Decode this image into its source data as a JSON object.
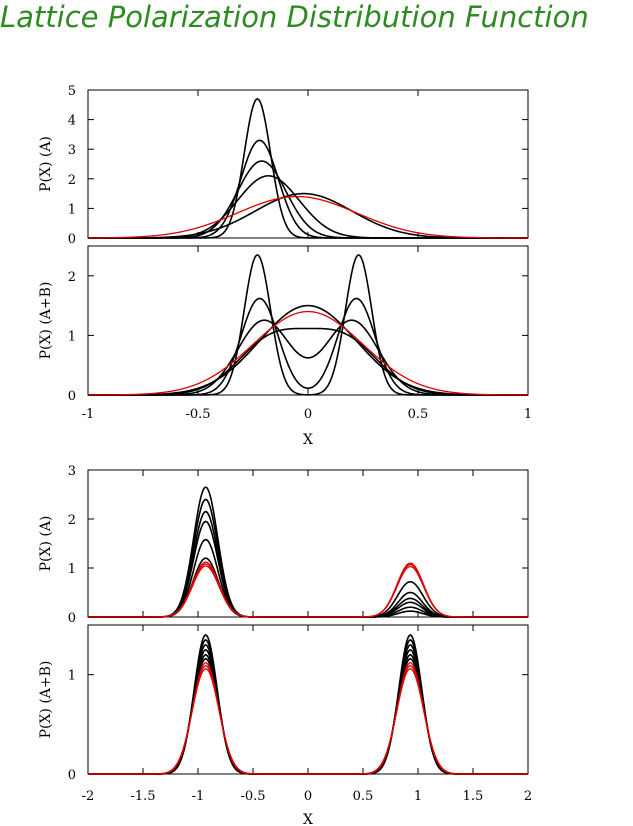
{
  "title": "Lattice Polarization Distribution Function",
  "colors": {
    "title": "#2e8b22",
    "main_curve": "#000000",
    "highlight_curve": "#e00000"
  },
  "chart_data": [
    {
      "type": "line",
      "figure": "top",
      "xlabel": "X",
      "x_range": [
        -1,
        1
      ],
      "x_ticks": [
        "-1",
        "-0.5",
        "0",
        "0.5",
        "1"
      ],
      "panels": [
        {
          "ylabel": "P(X) (A)",
          "ylim": [
            0,
            5
          ],
          "y_ticks": [
            "0",
            "1",
            "2",
            "3",
            "4",
            "5"
          ],
          "series": [
            {
              "color": "#000000",
              "gaussians": [
                {
                  "amp": 4.7,
                  "mu": -0.23,
                  "sigma": 0.06
                }
              ]
            },
            {
              "color": "#000000",
              "gaussians": [
                {
                  "amp": 3.3,
                  "mu": -0.22,
                  "sigma": 0.085
                }
              ]
            },
            {
              "color": "#000000",
              "gaussians": [
                {
                  "amp": 2.6,
                  "mu": -0.21,
                  "sigma": 0.11
                }
              ]
            },
            {
              "color": "#000000",
              "gaussians": [
                {
                  "amp": 2.1,
                  "mu": -0.18,
                  "sigma": 0.14
                }
              ]
            },
            {
              "color": "#000000",
              "gaussians": [
                {
                  "amp": 1.5,
                  "mu": -0.02,
                  "sigma": 0.22
                }
              ]
            },
            {
              "color": "#e00000",
              "gaussians": [
                {
                  "amp": 1.4,
                  "mu": -0.05,
                  "sigma": 0.27
                }
              ]
            }
          ]
        },
        {
          "ylabel": "P(X) (A+B)",
          "ylim": [
            0,
            2.5
          ],
          "y_ticks": [
            "0",
            "1",
            "2"
          ],
          "series": [
            {
              "color": "#000000",
              "gaussians": [
                {
                  "amp": 2.35,
                  "mu": -0.23,
                  "sigma": 0.06
                },
                {
                  "amp": 2.35,
                  "mu": 0.23,
                  "sigma": 0.06
                }
              ]
            },
            {
              "color": "#000000",
              "gaussians": [
                {
                  "amp": 1.62,
                  "mu": -0.22,
                  "sigma": 0.085
                },
                {
                  "amp": 1.62,
                  "mu": 0.22,
                  "sigma": 0.085
                }
              ]
            },
            {
              "color": "#000000",
              "gaussians": [
                {
                  "amp": 1.25,
                  "mu": -0.2,
                  "sigma": 0.12
                },
                {
                  "amp": 1.25,
                  "mu": 0.2,
                  "sigma": 0.12
                }
              ]
            },
            {
              "color": "#000000",
              "gaussians": [
                {
                  "amp": 0.92,
                  "mu": -0.16,
                  "sigma": 0.16
                },
                {
                  "amp": 0.92,
                  "mu": 0.16,
                  "sigma": 0.16
                }
              ]
            },
            {
              "color": "#000000",
              "gaussians": [
                {
                  "amp": 1.5,
                  "mu": 0,
                  "sigma": 0.22
                }
              ]
            },
            {
              "color": "#e00000",
              "gaussians": [
                {
                  "amp": 1.4,
                  "mu": 0,
                  "sigma": 0.25
                }
              ]
            }
          ]
        }
      ]
    },
    {
      "type": "line",
      "figure": "bottom",
      "xlabel": "X",
      "x_range": [
        -2,
        2
      ],
      "x_ticks": [
        "-2",
        "-1.5",
        "-1",
        "-0.5",
        "0",
        "0.5",
        "1",
        "1.5",
        "2"
      ],
      "panels": [
        {
          "ylabel": "P(X) (A)",
          "ylim": [
            0,
            3
          ],
          "y_ticks": [
            "0",
            "1",
            "2",
            "3"
          ],
          "series": [
            {
              "color": "#000000",
              "gaussians": [
                {
                  "amp": 2.65,
                  "mu": -0.93,
                  "sigma": 0.11
                },
                {
                  "amp": 0.12,
                  "mu": 0.93,
                  "sigma": 0.11
                }
              ]
            },
            {
              "color": "#000000",
              "gaussians": [
                {
                  "amp": 2.4,
                  "mu": -0.93,
                  "sigma": 0.11
                },
                {
                  "amp": 0.2,
                  "mu": 0.93,
                  "sigma": 0.11
                }
              ]
            },
            {
              "color": "#000000",
              "gaussians": [
                {
                  "amp": 2.15,
                  "mu": -0.93,
                  "sigma": 0.11
                },
                {
                  "amp": 0.3,
                  "mu": 0.93,
                  "sigma": 0.11
                }
              ]
            },
            {
              "color": "#000000",
              "gaussians": [
                {
                  "amp": 1.95,
                  "mu": -0.93,
                  "sigma": 0.11
                },
                {
                  "amp": 0.38,
                  "mu": 0.93,
                  "sigma": 0.11
                }
              ]
            },
            {
              "color": "#000000",
              "gaussians": [
                {
                  "amp": 1.58,
                  "mu": -0.93,
                  "sigma": 0.11
                },
                {
                  "amp": 0.5,
                  "mu": 0.93,
                  "sigma": 0.11
                }
              ]
            },
            {
              "color": "#000000",
              "gaussians": [
                {
                  "amp": 1.2,
                  "mu": -0.93,
                  "sigma": 0.115
                },
                {
                  "amp": 0.72,
                  "mu": 0.93,
                  "sigma": 0.115
                }
              ]
            },
            {
              "color": "#e00000",
              "gaussians": [
                {
                  "amp": 1.12,
                  "mu": -0.93,
                  "sigma": 0.12
                },
                {
                  "amp": 1.1,
                  "mu": 0.93,
                  "sigma": 0.12
                }
              ]
            },
            {
              "color": "#e00000",
              "gaussians": [
                {
                  "amp": 1.08,
                  "mu": -0.93,
                  "sigma": 0.12
                },
                {
                  "amp": 1.07,
                  "mu": 0.93,
                  "sigma": 0.12
                }
              ]
            },
            {
              "color": "#e00000",
              "gaussians": [
                {
                  "amp": 1.04,
                  "mu": -0.93,
                  "sigma": 0.12
                },
                {
                  "amp": 1.03,
                  "mu": 0.93,
                  "sigma": 0.12
                }
              ]
            }
          ]
        },
        {
          "ylabel": "P(X) (A+B)",
          "ylim": [
            0,
            1.5
          ],
          "y_ticks": [
            "0",
            "1"
          ],
          "series": [
            {
              "color": "#000000",
              "gaussians": [
                {
                  "amp": 1.4,
                  "mu": -0.93,
                  "sigma": 0.105
                },
                {
                  "amp": 1.4,
                  "mu": 0.93,
                  "sigma": 0.105
                }
              ]
            },
            {
              "color": "#000000",
              "gaussians": [
                {
                  "amp": 1.35,
                  "mu": -0.93,
                  "sigma": 0.107
                },
                {
                  "amp": 1.35,
                  "mu": 0.93,
                  "sigma": 0.107
                }
              ]
            },
            {
              "color": "#000000",
              "gaussians": [
                {
                  "amp": 1.3,
                  "mu": -0.93,
                  "sigma": 0.109
                },
                {
                  "amp": 1.3,
                  "mu": 0.93,
                  "sigma": 0.109
                }
              ]
            },
            {
              "color": "#000000",
              "gaussians": [
                {
                  "amp": 1.25,
                  "mu": -0.93,
                  "sigma": 0.111
                },
                {
                  "amp": 1.25,
                  "mu": 0.93,
                  "sigma": 0.111
                }
              ]
            },
            {
              "color": "#000000",
              "gaussians": [
                {
                  "amp": 1.2,
                  "mu": -0.93,
                  "sigma": 0.113
                },
                {
                  "amp": 1.2,
                  "mu": 0.93,
                  "sigma": 0.113
                }
              ]
            },
            {
              "color": "#000000",
              "gaussians": [
                {
                  "amp": 1.16,
                  "mu": -0.93,
                  "sigma": 0.115
                },
                {
                  "amp": 1.16,
                  "mu": 0.93,
                  "sigma": 0.115
                }
              ]
            },
            {
              "color": "#e00000",
              "gaussians": [
                {
                  "amp": 1.12,
                  "mu": -0.93,
                  "sigma": 0.117
                },
                {
                  "amp": 1.12,
                  "mu": 0.93,
                  "sigma": 0.117
                }
              ]
            },
            {
              "color": "#e00000",
              "gaussians": [
                {
                  "amp": 1.09,
                  "mu": -0.93,
                  "sigma": 0.119
                },
                {
                  "amp": 1.09,
                  "mu": 0.93,
                  "sigma": 0.119
                }
              ]
            },
            {
              "color": "#e00000",
              "gaussians": [
                {
                  "amp": 1.06,
                  "mu": -0.93,
                  "sigma": 0.121
                },
                {
                  "amp": 1.06,
                  "mu": 0.93,
                  "sigma": 0.121
                }
              ]
            }
          ]
        }
      ]
    }
  ]
}
